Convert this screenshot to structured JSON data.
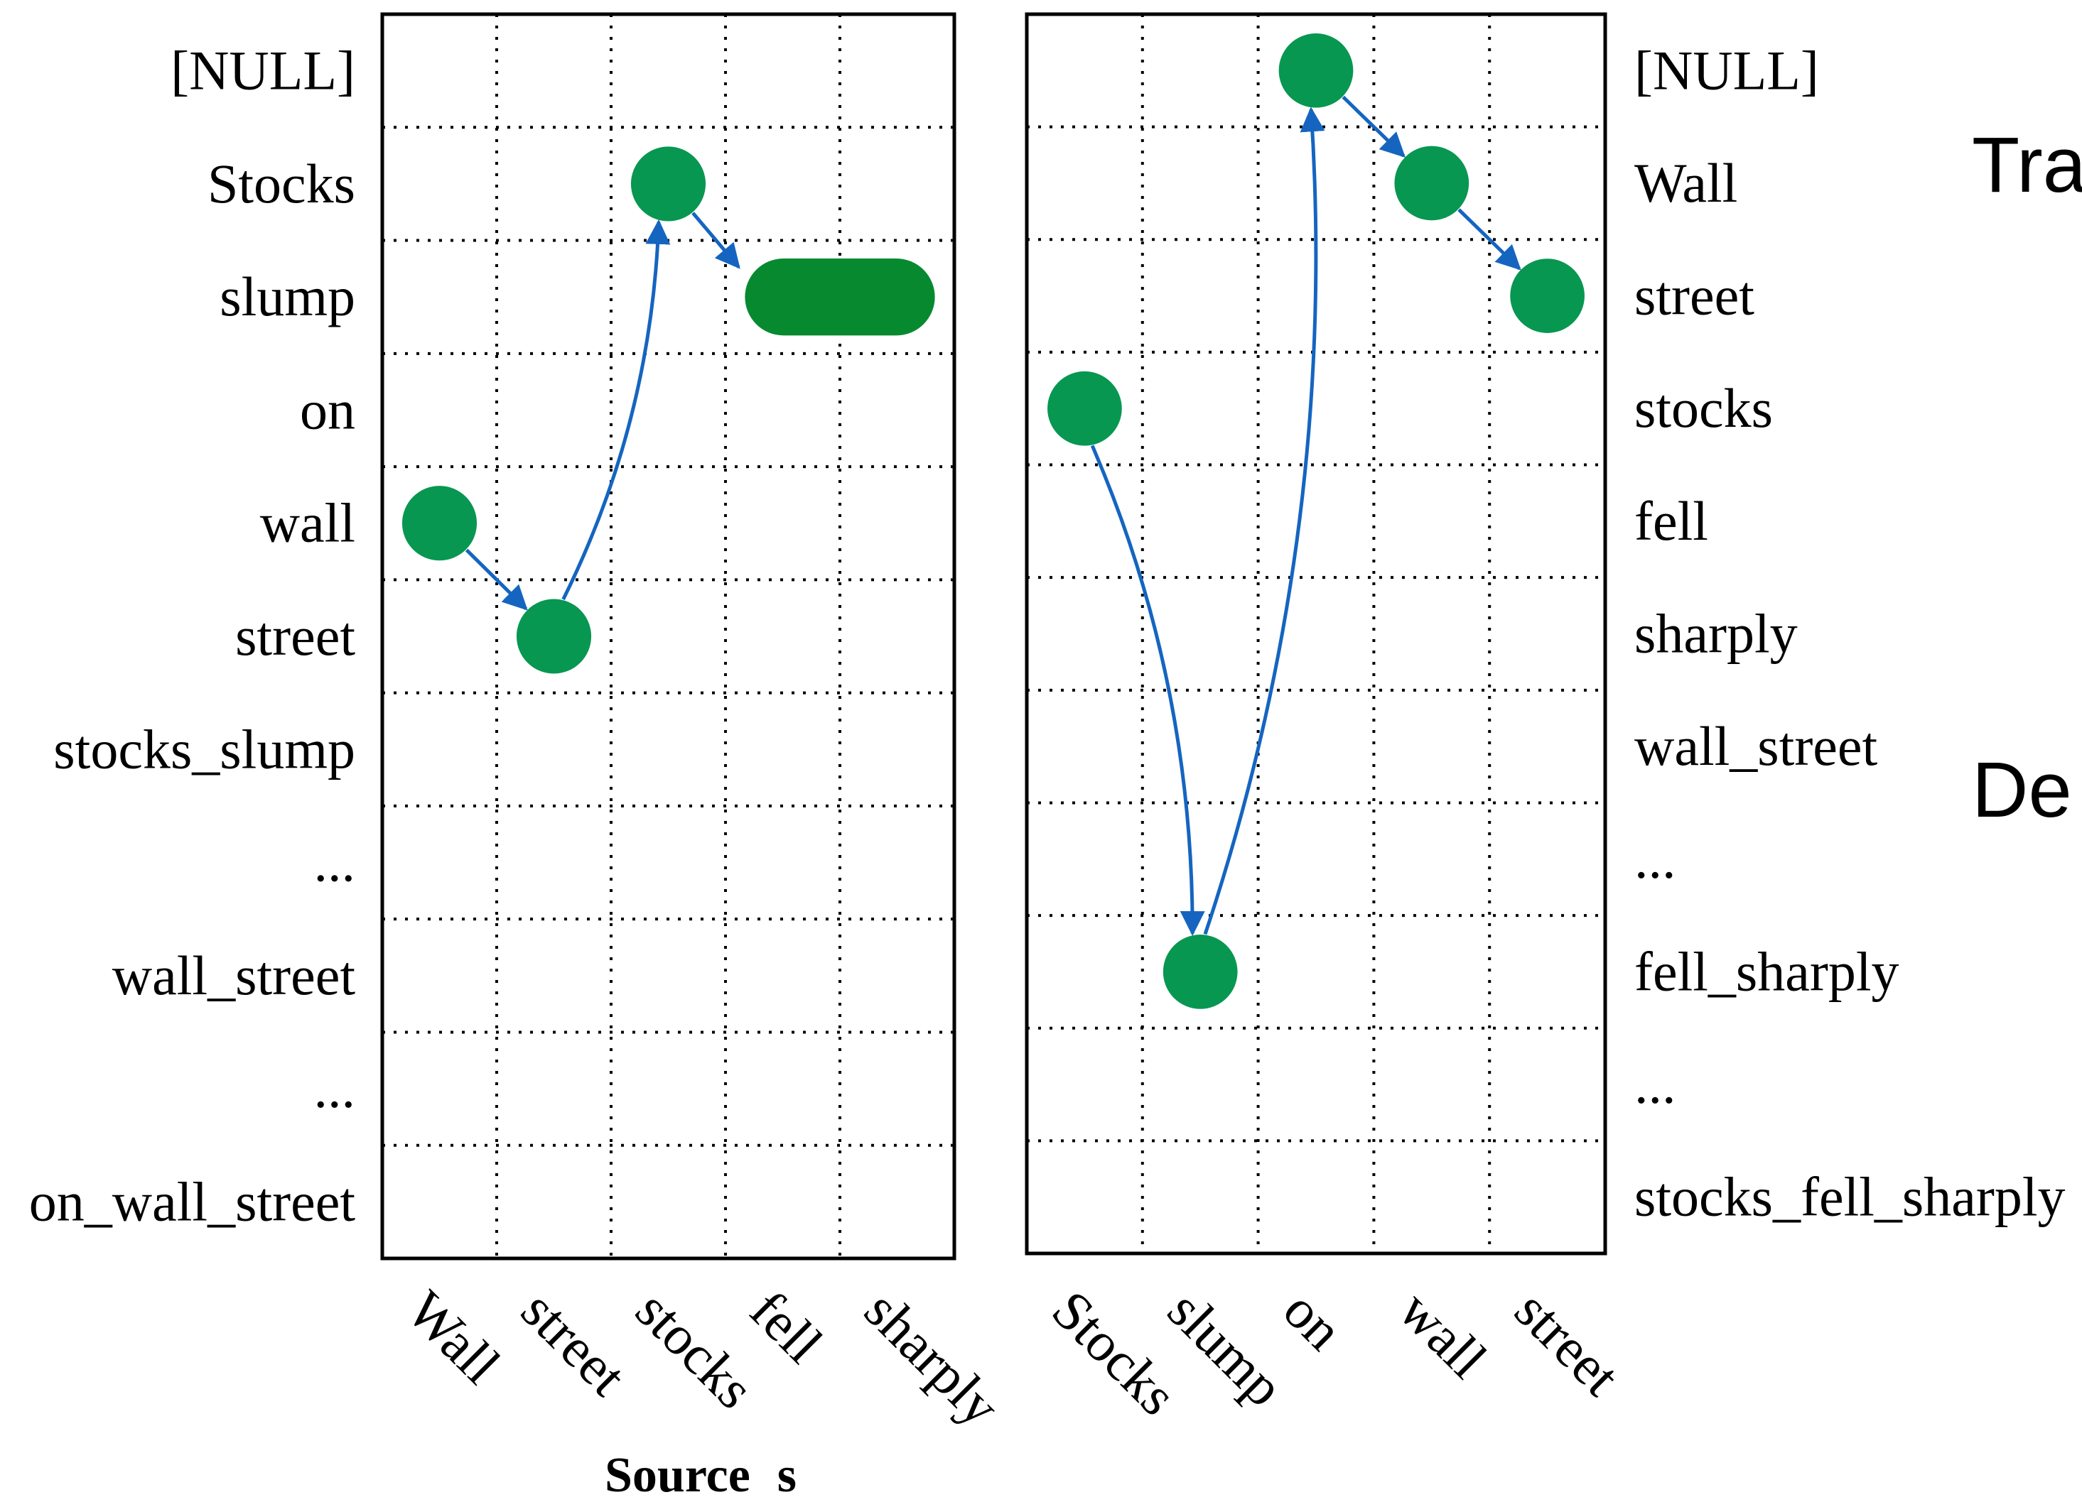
{
  "left_panel": {
    "rows": [
      "[NULL]",
      "Stocks",
      "slump",
      "on",
      "wall",
      "street",
      "stocks_slump",
      "...",
      "wall_street",
      "...",
      "on_wall_street"
    ],
    "columns": [
      "Wall",
      "street",
      "stocks",
      "fell",
      "sharply"
    ],
    "points": [
      {
        "row": 4,
        "col": 0
      },
      {
        "row": 5,
        "col": 1
      },
      {
        "row": 1,
        "col": 2
      }
    ],
    "span": {
      "row": 2,
      "col_from": 3,
      "col_to": 4
    },
    "path": [
      {
        "row": 4,
        "col": 0
      },
      {
        "row": 5,
        "col": 1
      },
      {
        "row": 1,
        "col": 2
      },
      {
        "row": 2,
        "col": 3
      }
    ]
  },
  "right_panel": {
    "rows": [
      "[NULL]",
      "Wall",
      "street",
      "stocks",
      "fell",
      "sharply",
      "wall_street",
      "...",
      "fell_sharply",
      "...",
      "stocks_fell_sharply"
    ],
    "columns": [
      "Stocks",
      "slump",
      "on",
      "wall",
      "street"
    ],
    "points": [
      {
        "row": 3,
        "col": 0
      },
      {
        "row": 8,
        "col": 1
      },
      {
        "row": 0,
        "col": 2
      },
      {
        "row": 1,
        "col": 3
      },
      {
        "row": 2,
        "col": 4
      }
    ],
    "path": [
      {
        "row": 3,
        "col": 0
      },
      {
        "row": 8,
        "col": 1
      },
      {
        "row": 0,
        "col": 2
      },
      {
        "row": 1,
        "col": 3
      },
      {
        "row": 2,
        "col": 4
      }
    ]
  },
  "source_label": {
    "word": "Source",
    "var": "s"
  },
  "side_labels": [
    "Tra",
    "De"
  ],
  "colors": {
    "node": "#079751",
    "span": "#078a2f",
    "arrow": "#1565c0",
    "grid": "#000000"
  }
}
